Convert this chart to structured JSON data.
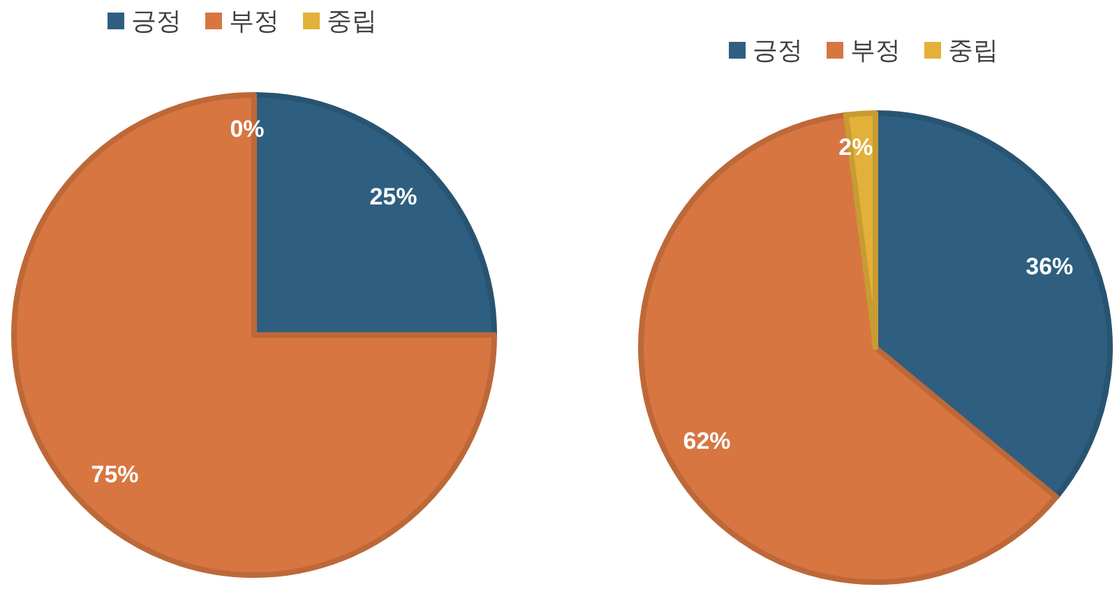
{
  "chart_data": [
    {
      "type": "pie",
      "categories": [
        "긍정",
        "부정",
        "중립"
      ],
      "values": [
        25,
        75,
        0
      ],
      "value_labels": [
        "25%",
        "75%",
        "0%"
      ],
      "colors": [
        "#2e5f80",
        "#d77641",
        "#e3b03a"
      ],
      "legend": "top"
    },
    {
      "type": "pie",
      "categories": [
        "긍정",
        "부정",
        "중립"
      ],
      "values": [
        36,
        62,
        2
      ],
      "value_labels": [
        "36%",
        "62%",
        "2%"
      ],
      "colors": [
        "#2e5f80",
        "#d77641",
        "#e3b03a"
      ],
      "legend": "top"
    }
  ]
}
